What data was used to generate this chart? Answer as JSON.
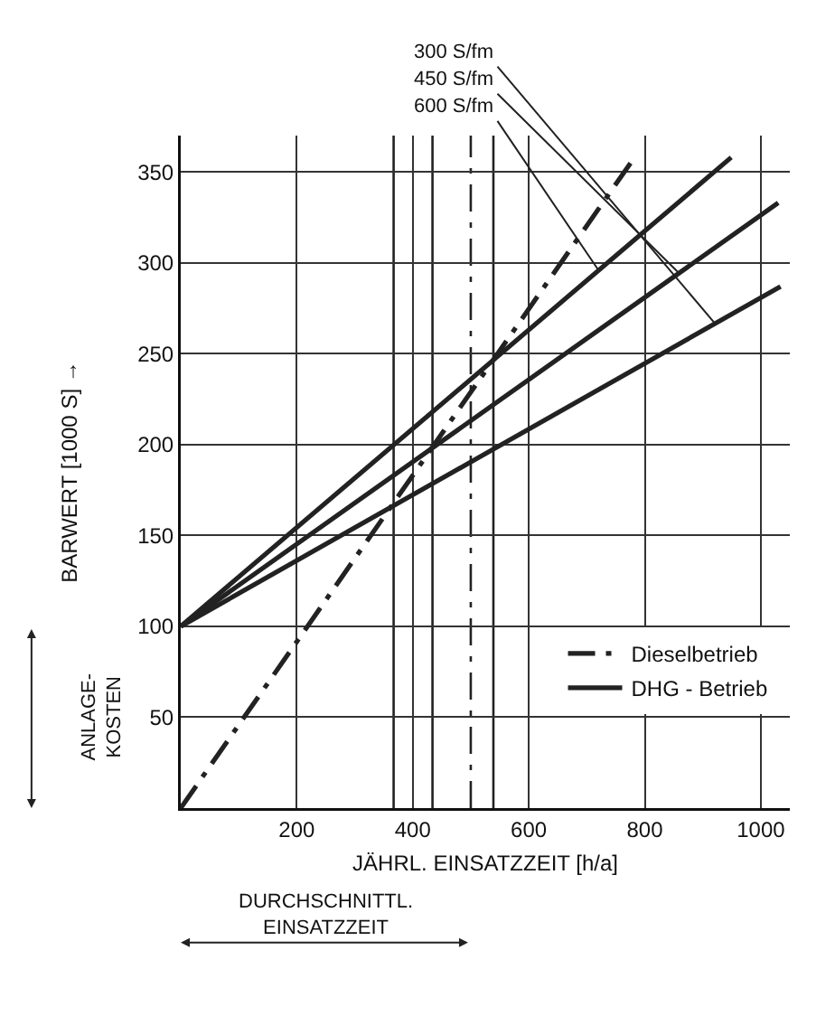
{
  "chart_data": {
    "type": "line",
    "xlabel": "JÄHRL. EINSATZZEIT [h/a]",
    "ylabel": "BARWERT [1000 S] →",
    "xlim": [
      0,
      1050
    ],
    "xticks": [
      200,
      400,
      600,
      800,
      1000
    ],
    "ylim": [
      0,
      370
    ],
    "yticks": [
      50,
      100,
      150,
      200,
      250,
      300,
      350
    ],
    "grid": true,
    "legend": "bottom right",
    "marker": "none",
    "series": [
      {
        "name": "Dieselbetrieb",
        "color": "#222222",
        "line_style": "dashdot",
        "x": [
          0,
          780
        ],
        "values": [
          0,
          357
        ]
      },
      {
        "name": "DHG - Betrieb",
        "color": "#222222",
        "line_style": "solid",
        "x": [
          0,
          1034
        ],
        "values": [
          100,
          287
        ]
      },
      {
        "color": "#222222",
        "line_style": "solid",
        "x": [
          0,
          1030
        ],
        "values": [
          100,
          333
        ]
      },
      {
        "color": "#222222",
        "line_style": "solid",
        "x": [
          0,
          949
        ],
        "values": [
          100,
          358
        ]
      }
    ],
    "ref_lines": [
      {
        "axis": "x",
        "value": 367,
        "color": "#222222",
        "line_style": "solid"
      },
      {
        "axis": "x",
        "value": 434,
        "color": "#222222",
        "line_style": "solid"
      },
      {
        "axis": "x",
        "value": 539,
        "color": "#222222",
        "line_style": "solid"
      },
      {
        "axis": "x",
        "value": 500,
        "color": "#222222",
        "line_style": "dashdot"
      }
    ],
    "annotations": [
      {
        "text": "300 S/fm",
        "x": 920,
        "y": 267
      },
      {
        "text": "450 S/fm",
        "x": 860,
        "y": 294
      },
      {
        "text": "600 S/fm",
        "x": 720,
        "y": 296
      },
      "ANLAGE-\nKOSTEN",
      "DURCHSCHNITTL.\nEINSATZZEIT"
    ]
  }
}
